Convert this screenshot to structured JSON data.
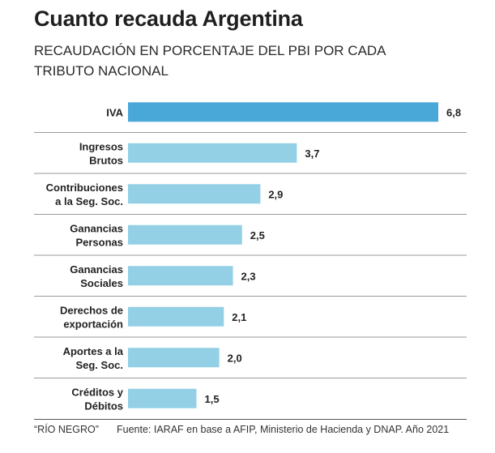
{
  "header": {
    "title": "Cuanto recauda Argentina",
    "subtitle": "RECAUDACIÓN EN PORCENTAJE DEL PBI POR CADA TRIBUTO NACIONAL"
  },
  "footer": {
    "credit": "“RÍO NEGRO”",
    "source": "Fuente: IARAF en base a AFIP, Ministerio de Hacienda y DNAP. Año 2021"
  },
  "colors": {
    "highlight": "#4aa8d8",
    "bar": "#93d0e6",
    "separator": "#9a9a9a"
  },
  "chart_data": {
    "type": "bar",
    "orientation": "horizontal",
    "title": "Cuanto recauda Argentina",
    "subtitle": "RECAUDACIÓN EN PORCENTAJE DEL PBI POR CADA TRIBUTO NACIONAL",
    "categories": [
      [
        "IVA"
      ],
      [
        "Ingresos",
        "Brutos"
      ],
      [
        "Contribuciones",
        "a la Seg. Soc."
      ],
      [
        "Ganancias",
        "Personas"
      ],
      [
        "Ganancias",
        "Sociales"
      ],
      [
        "Derechos de",
        "exportación"
      ],
      [
        "Aportes a la",
        "Seg. Soc."
      ],
      [
        "Créditos y",
        "Débitos"
      ]
    ],
    "values": [
      6.8,
      3.7,
      2.9,
      2.5,
      2.3,
      2.1,
      2.0,
      1.5
    ],
    "value_labels": [
      "6,8",
      "3,7",
      "2,9",
      "2,5",
      "2,3",
      "2,1",
      "2,0",
      "1,5"
    ],
    "highlighted_index": 0,
    "xlim": [
      0,
      6.8
    ],
    "grid": false,
    "legend": "none"
  }
}
